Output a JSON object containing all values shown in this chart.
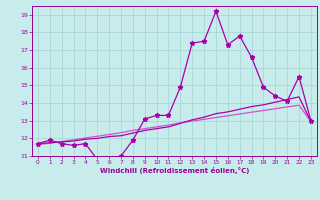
{
  "x": [
    0,
    1,
    2,
    3,
    4,
    5,
    6,
    7,
    8,
    9,
    10,
    11,
    12,
    13,
    14,
    15,
    16,
    17,
    18,
    19,
    20,
    21,
    22,
    23
  ],
  "line1": [
    11.7,
    11.9,
    11.7,
    11.6,
    11.7,
    10.8,
    10.8,
    11.0,
    11.9,
    13.1,
    13.3,
    13.3,
    14.9,
    17.4,
    17.5,
    19.2,
    17.3,
    17.8,
    16.6,
    14.9,
    14.4,
    14.1,
    15.5,
    13.0
  ],
  "line2": [
    11.7,
    11.75,
    11.8,
    11.85,
    11.95,
    12.0,
    12.1,
    12.15,
    12.3,
    12.45,
    12.55,
    12.65,
    12.85,
    13.05,
    13.2,
    13.4,
    13.5,
    13.65,
    13.8,
    13.9,
    14.05,
    14.2,
    14.35,
    12.95
  ],
  "line3": [
    11.65,
    11.72,
    11.82,
    11.92,
    12.02,
    12.12,
    12.22,
    12.32,
    12.45,
    12.55,
    12.65,
    12.75,
    12.88,
    12.98,
    13.08,
    13.18,
    13.28,
    13.38,
    13.48,
    13.58,
    13.68,
    13.78,
    13.88,
    12.95
  ],
  "color_line1": "#aa00aa",
  "color_line2": "#aa00aa",
  "color_line3": "#cc55cc",
  "bg_color": "#c8ecec",
  "grid_color": "#a8d8d8",
  "axis_color": "#990099",
  "tick_color": "#990099",
  "xlabel": "Windchill (Refroidissement éolien,°C)",
  "ylim": [
    11,
    19.5
  ],
  "xlim": [
    -0.5,
    23.5
  ],
  "yticks": [
    11,
    12,
    13,
    14,
    15,
    16,
    17,
    18,
    19
  ],
  "xticks": [
    0,
    1,
    2,
    3,
    4,
    5,
    6,
    7,
    8,
    9,
    10,
    11,
    12,
    13,
    14,
    15,
    16,
    17,
    18,
    19,
    20,
    21,
    22,
    23
  ],
  "marker": "*",
  "markersize": 3.5,
  "linewidth": 0.9
}
